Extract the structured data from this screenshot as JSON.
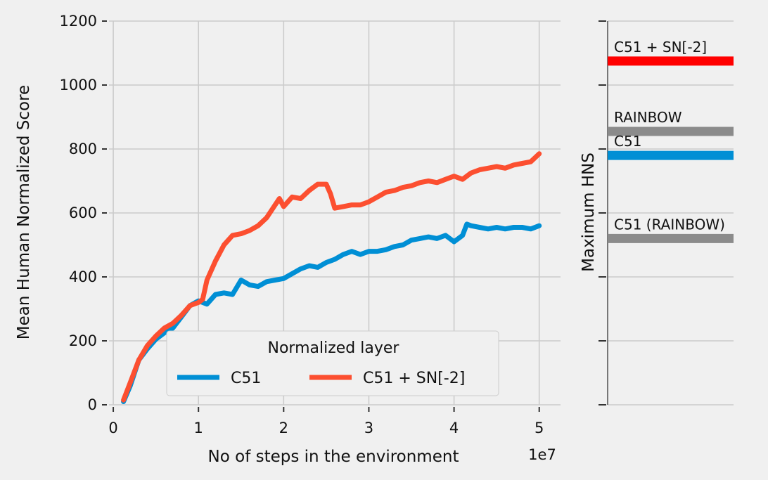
{
  "chart_data": [
    {
      "type": "line",
      "xlabel": "No of steps in the environment",
      "ylabel": "Mean Human Normalized Score",
      "x_offset_label": "1e7",
      "xlim": [
        -0.05,
        5.25
      ],
      "ylim": [
        0,
        1200
      ],
      "x_ticks": [
        0,
        1,
        2,
        3,
        4,
        5
      ],
      "y_ticks": [
        0,
        200,
        400,
        600,
        800,
        1000,
        1200
      ],
      "grid": true,
      "legend": {
        "title": "Normalized layer",
        "placement": "lower-center"
      },
      "series": [
        {
          "name": "C51",
          "color": "#008fd5",
          "x": [
            0.12,
            0.2,
            0.3,
            0.4,
            0.5,
            0.6,
            0.7,
            0.8,
            0.9,
            1.0,
            1.1,
            1.2,
            1.3,
            1.4,
            1.5,
            1.6,
            1.7,
            1.8,
            1.9,
            2.0,
            2.1,
            2.2,
            2.3,
            2.4,
            2.5,
            2.6,
            2.7,
            2.8,
            2.9,
            3.0,
            3.1,
            3.2,
            3.3,
            3.4,
            3.5,
            3.6,
            3.7,
            3.8,
            3.9,
            4.0,
            4.1,
            4.15,
            4.2,
            4.3,
            4.4,
            4.5,
            4.6,
            4.7,
            4.8,
            4.9,
            5.0
          ],
          "values": [
            10,
            60,
            140,
            175,
            205,
            225,
            240,
            275,
            310,
            325,
            315,
            345,
            350,
            345,
            390,
            375,
            370,
            385,
            390,
            395,
            410,
            425,
            435,
            430,
            445,
            455,
            470,
            480,
            470,
            480,
            480,
            485,
            495,
            500,
            515,
            520,
            525,
            520,
            530,
            510,
            530,
            565,
            560,
            555,
            550,
            555,
            550,
            555,
            555,
            550,
            560
          ]
        },
        {
          "name": "C51 + SN[-2]",
          "color": "#fc4f30",
          "x": [
            0.12,
            0.2,
            0.3,
            0.4,
            0.5,
            0.6,
            0.7,
            0.8,
            0.9,
            1.0,
            1.05,
            1.1,
            1.2,
            1.3,
            1.4,
            1.5,
            1.6,
            1.7,
            1.8,
            1.9,
            1.95,
            2.0,
            2.1,
            2.2,
            2.3,
            2.4,
            2.5,
            2.55,
            2.6,
            2.7,
            2.8,
            2.9,
            3.0,
            3.1,
            3.2,
            3.3,
            3.4,
            3.5,
            3.6,
            3.7,
            3.8,
            3.9,
            4.0,
            4.1,
            4.2,
            4.3,
            4.4,
            4.5,
            4.6,
            4.7,
            4.8,
            4.9,
            5.0
          ],
          "values": [
            15,
            70,
            140,
            185,
            215,
            240,
            255,
            280,
            310,
            320,
            330,
            390,
            450,
            500,
            530,
            535,
            545,
            560,
            585,
            625,
            645,
            620,
            650,
            645,
            670,
            690,
            690,
            660,
            615,
            620,
            625,
            625,
            635,
            650,
            665,
            670,
            680,
            685,
            695,
            700,
            695,
            705,
            715,
            705,
            725,
            735,
            740,
            745,
            740,
            750,
            755,
            760,
            785
          ]
        }
      ]
    },
    {
      "type": "bar",
      "orientation": "horizontal-lines",
      "ylabel": "Maximum HNS",
      "ylim": [
        0,
        1200
      ],
      "categories": [
        "C51 + SN[-2]",
        "RAINBOW",
        "C51",
        "C51 (RAINBOW)"
      ],
      "values": [
        1075,
        855,
        780,
        520
      ],
      "colors": [
        "#ff0000",
        "#8b8b8b",
        "#008fd5",
        "#8b8b8b"
      ]
    }
  ]
}
